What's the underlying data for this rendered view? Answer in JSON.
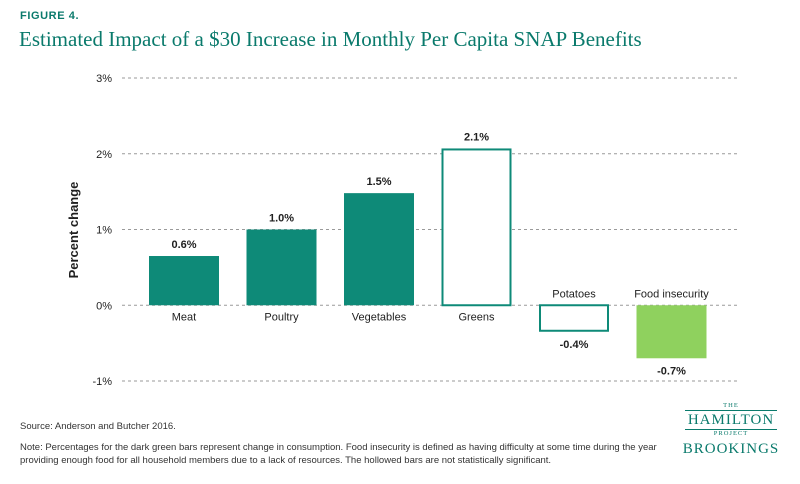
{
  "figure_label": "FIGURE 4.",
  "title": "Estimated Impact of a $30 Increase in Monthly Per Capita SNAP Benefits",
  "source": "Source: Anderson and Butcher 2016.",
  "note": "Note: Percentages for the dark green bars represent change in consumption. Food insecurity is defined as having difficulty at some time during the year providing enough food for all household members due to a lack of resources. The hollowed bars are not statistically significant.",
  "logo": {
    "the": "THE",
    "hamilton": "HAMILTON",
    "project": "PROJECT",
    "brookings": "BROOKINGS"
  },
  "colors": {
    "accent": "#0a7a6c",
    "bar_solid": "#0e8a78",
    "bar_highlight": "#8fd15e",
    "grid": "#9a9a9a"
  },
  "chart_data": {
    "type": "bar",
    "title": "Estimated Impact of a $30 Increase in Monthly Per Capita SNAP Benefits",
    "xlabel": "",
    "ylabel": "Percent change",
    "ylim": [
      -1,
      3
    ],
    "yticks": [
      3,
      2,
      1,
      0,
      -1
    ],
    "ytick_labels": [
      "3%",
      "2%",
      "1%",
      "0%",
      "-1%"
    ],
    "grid": "horizontal dashed",
    "categories": [
      "Meat",
      "Poultry",
      "Vegetables",
      "Greens",
      "Potatoes",
      "Food insecurity"
    ],
    "values": [
      0.65,
      1.0,
      1.48,
      2.07,
      -0.35,
      -0.7
    ],
    "data_labels": [
      "0.6%",
      "1.0%",
      "1.5%",
      "2.1%",
      "-0.4%",
      "-0.7%"
    ],
    "styles": [
      "solid",
      "solid",
      "solid",
      "hollow",
      "hollow",
      "highlight"
    ]
  }
}
